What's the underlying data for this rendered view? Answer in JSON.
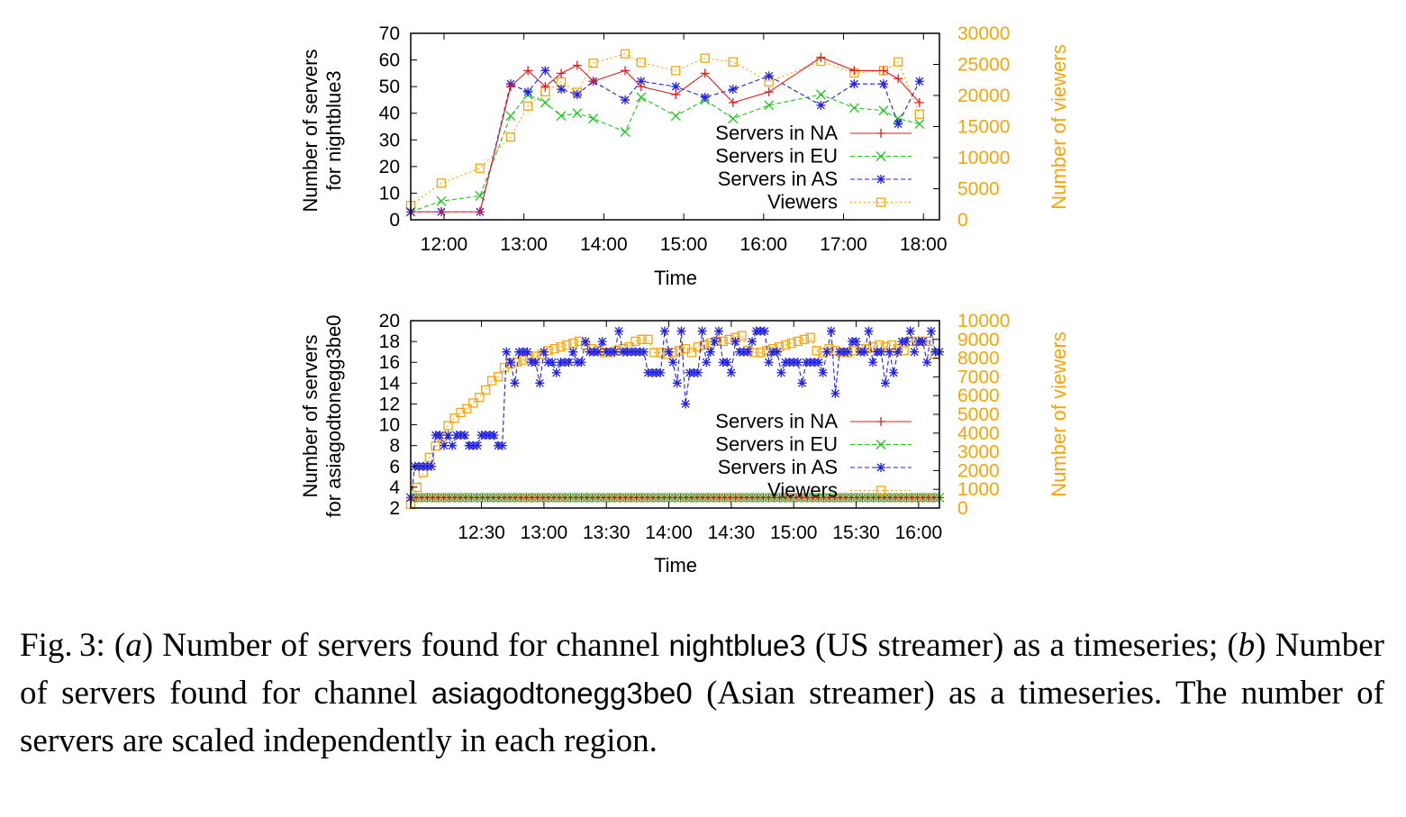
{
  "colors": {
    "na": "#e41a1c",
    "eu": "#1fc51f",
    "as": "#1f1fe8",
    "viewers": "#f5a50a",
    "axis": "#000000"
  },
  "chart_data": [
    {
      "type": "line",
      "panel": "a",
      "xlabel": "Time",
      "ylabel_line1": "Number of servers",
      "ylabel_line2": "for nightblue3",
      "y2label": "Number of viewers",
      "x_ticks": [
        "12:00",
        "13:00",
        "14:00",
        "15:00",
        "16:00",
        "17:00",
        "18:00"
      ],
      "x_tick_minutes": [
        720,
        780,
        840,
        900,
        960,
        1020,
        1080
      ],
      "xlim_minutes": [
        695,
        1092
      ],
      "ylim": [
        0,
        70
      ],
      "y_ticks": [
        "0",
        "10",
        "20",
        "30",
        "40",
        "50",
        "60",
        "70"
      ],
      "y2lim": [
        0,
        30000
      ],
      "y2_ticks": [
        "0",
        "5000",
        "10000",
        "15000",
        "20000",
        "25000",
        "30000"
      ],
      "legend_position": "right",
      "series": [
        {
          "name": "Servers in NA",
          "key": "na",
          "axis": "y",
          "marker": "plus",
          "x": [
            695,
            718,
            747,
            770,
            783,
            796,
            808,
            820,
            832,
            856,
            868,
            894,
            916,
            937,
            964,
            1003,
            1028,
            1050,
            1061,
            1077
          ],
          "y": [
            3,
            3,
            3,
            50,
            56,
            50,
            55,
            58,
            52,
            56,
            50,
            47,
            55,
            44,
            48,
            61,
            56,
            56,
            53,
            44
          ]
        },
        {
          "name": "Servers in EU",
          "key": "eu",
          "axis": "y",
          "marker": "x",
          "x": [
            695,
            718,
            747,
            770,
            783,
            796,
            808,
            820,
            832,
            856,
            868,
            894,
            916,
            937,
            964,
            1003,
            1028,
            1050,
            1061,
            1077
          ],
          "y": [
            3,
            7,
            9,
            39,
            47,
            44,
            39,
            40,
            38,
            33,
            46,
            39,
            45,
            38,
            43,
            47,
            42,
            41,
            38,
            36
          ]
        },
        {
          "name": "Servers in AS",
          "key": "as",
          "axis": "y",
          "marker": "star",
          "x": [
            695,
            718,
            747,
            770,
            783,
            796,
            808,
            820,
            832,
            856,
            868,
            894,
            916,
            937,
            964,
            1003,
            1028,
            1050,
            1061,
            1077
          ],
          "y": [
            3,
            3,
            3,
            51,
            48,
            56,
            49,
            47,
            52,
            45,
            52,
            50,
            46,
            49,
            54,
            43,
            51,
            51,
            36,
            52
          ]
        },
        {
          "name": "Viewers",
          "key": "viewers",
          "axis": "y2",
          "marker": "square",
          "x": [
            695,
            718,
            747,
            770,
            783,
            796,
            808,
            820,
            832,
            856,
            868,
            894,
            916,
            937,
            964,
            1003,
            1028,
            1050,
            1061,
            1077
          ],
          "y": [
            2300,
            5900,
            8300,
            13300,
            18300,
            20600,
            22200,
            20500,
            25200,
            26700,
            25300,
            24000,
            26000,
            25400,
            22200,
            25500,
            23600,
            24000,
            25400,
            17000
          ]
        }
      ]
    },
    {
      "type": "line",
      "panel": "b",
      "xlabel": "Time",
      "ylabel_line1": "Number of servers",
      "ylabel_line2": "for asiagodtonegg3be0",
      "y2label": "Number of viewers",
      "x_ticks": [
        "12:30",
        "13:00",
        "13:30",
        "14:00",
        "14:30",
        "15:00",
        "15:30",
        "16:00"
      ],
      "x_tick_minutes": [
        750,
        780,
        810,
        840,
        870,
        900,
        930,
        960
      ],
      "xlim_minutes": [
        716,
        970
      ],
      "ylim": [
        2,
        20
      ],
      "y_ticks": [
        "2",
        "4",
        "6",
        "8",
        "10",
        "12",
        "14",
        "16",
        "18",
        "20"
      ],
      "y2lim": [
        0,
        10000
      ],
      "y2_ticks": [
        "0",
        "1000",
        "2000",
        "3000",
        "4000",
        "5000",
        "6000",
        "7000",
        "8000",
        "9000",
        "10000"
      ],
      "legend_position": "right",
      "series": [
        {
          "name": "Servers in NA",
          "key": "na",
          "axis": "y",
          "marker": "plus",
          "x": [
            716,
            970
          ],
          "y": [
            3,
            3
          ]
        },
        {
          "name": "Servers in EU",
          "key": "eu",
          "axis": "y",
          "marker": "x",
          "x": [
            716,
            970
          ],
          "y": [
            3,
            3
          ]
        },
        {
          "name": "Servers in AS",
          "key": "as",
          "axis": "y",
          "marker": "star",
          "x": [
            716,
            718,
            720,
            722,
            724,
            726,
            728,
            730,
            732,
            734,
            736,
            738,
            740,
            742,
            744,
            746,
            748,
            750,
            752,
            754,
            756,
            758,
            760,
            762,
            764,
            766,
            768,
            770,
            772,
            774,
            776,
            778,
            780,
            782,
            784,
            786,
            788,
            790,
            792,
            794,
            796,
            798,
            800,
            802,
            804,
            806,
            808,
            810,
            812,
            814,
            816,
            818,
            820,
            822,
            824,
            826,
            828,
            830,
            832,
            834,
            836,
            838,
            840,
            842,
            844,
            846,
            848,
            850,
            852,
            854,
            856,
            858,
            860,
            862,
            864,
            866,
            868,
            870,
            872,
            874,
            876,
            878,
            880,
            882,
            884,
            886,
            888,
            890,
            892,
            894,
            896,
            898,
            900,
            902,
            904,
            906,
            908,
            910,
            912,
            914,
            916,
            918,
            920,
            922,
            924,
            926,
            928,
            930,
            932,
            934,
            936,
            938,
            940,
            942,
            944,
            946,
            948,
            950,
            952,
            954,
            956,
            958,
            960,
            962,
            964,
            966,
            968,
            970
          ],
          "y": [
            3,
            6,
            6,
            6,
            6,
            6,
            9,
            9,
            8,
            9,
            8,
            9,
            9,
            9,
            8,
            8,
            8,
            9,
            9,
            9,
            9,
            8,
            8,
            17,
            16,
            14,
            17,
            17,
            17,
            16,
            16,
            14,
            17,
            16,
            16,
            15,
            16,
            16,
            16,
            17,
            16,
            16,
            18,
            17,
            17,
            17,
            18,
            17,
            17,
            17,
            19,
            17,
            17,
            17,
            17,
            17,
            17,
            15,
            15,
            15,
            15,
            19,
            17,
            16,
            14,
            19,
            12,
            15,
            15,
            15,
            19,
            16,
            17,
            18,
            19,
            16,
            16,
            15,
            18,
            17,
            17,
            17,
            18,
            19,
            19,
            19,
            16,
            17,
            17,
            15,
            16,
            16,
            16,
            16,
            14,
            16,
            16,
            16,
            16,
            15,
            17,
            19,
            13,
            17,
            17,
            17,
            18,
            18,
            17,
            17,
            19,
            16,
            17,
            17,
            14,
            17,
            15,
            17,
            18,
            18,
            19,
            17,
            18,
            18,
            16,
            19,
            17,
            17
          ]
        },
        {
          "name": "Viewers",
          "key": "viewers",
          "axis": "y2",
          "marker": "square",
          "x": [
            716,
            719,
            722,
            725,
            728,
            731,
            734,
            737,
            740,
            743,
            746,
            749,
            752,
            755,
            758,
            761,
            764,
            767,
            770,
            773,
            776,
            779,
            782,
            785,
            788,
            791,
            794,
            797,
            800,
            803,
            806,
            809,
            812,
            815,
            818,
            821,
            824,
            827,
            830,
            833,
            836,
            839,
            842,
            845,
            848,
            851,
            854,
            857,
            860,
            863,
            866,
            869,
            872,
            875,
            878,
            881,
            884,
            887,
            890,
            893,
            896,
            899,
            902,
            905,
            908,
            911,
            914,
            917,
            920,
            923,
            926,
            929,
            932,
            935,
            938,
            941,
            944,
            947,
            950,
            953,
            956,
            959,
            962,
            965,
            968
          ],
          "y": [
            200,
            1100,
            1900,
            2700,
            3300,
            3800,
            4400,
            4800,
            5100,
            5300,
            5600,
            5900,
            6300,
            6800,
            7000,
            7500,
            7700,
            7800,
            7900,
            8000,
            8100,
            8200,
            8400,
            8500,
            8600,
            8700,
            8800,
            8900,
            8700,
            8500,
            8400,
            8300,
            8300,
            8400,
            8500,
            8600,
            8900,
            9000,
            9000,
            8300,
            8300,
            8200,
            8300,
            8400,
            8500,
            8300,
            8600,
            8700,
            8800,
            8900,
            8900,
            9000,
            9100,
            9200,
            8400,
            8300,
            8300,
            8400,
            8500,
            8600,
            8700,
            8800,
            8900,
            9000,
            9100,
            8400,
            8300,
            8500,
            8400,
            8300,
            8300,
            8400,
            8500,
            8500,
            8600,
            8700,
            8600,
            8700,
            8500,
            8400,
            8900,
            8900,
            8900,
            8900,
            8200
          ]
        }
      ]
    }
  ],
  "caption": {
    "part1": "Fig. 3: (",
    "a": "a",
    "part2": ") Number of servers found for channel ",
    "channel_a": "nightblue3",
    "part3": " (US streamer) as a timeseries; (",
    "b": "b",
    "part4": ") Number of servers found for channel ",
    "channel_b": "asiagodtonegg3be0",
    "part5": " (Asian streamer) as a timeseries. The number of servers are scaled independently in each region."
  }
}
